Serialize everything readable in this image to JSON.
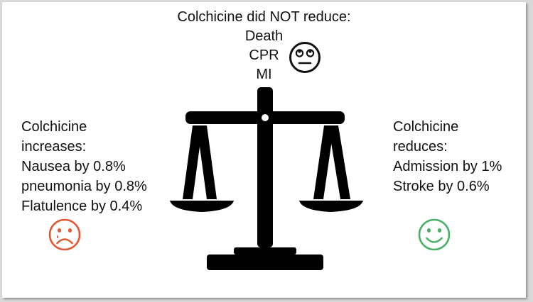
{
  "header": {
    "lines": [
      "Colchicine did NOT reduce:",
      "Death",
      "CPR",
      "MI"
    ]
  },
  "left_panel": {
    "lines": [
      "Colchicine",
      "increases:",
      "Nausea by 0.8%",
      "pneumonia by 0.8%",
      "Flatulence by 0.4%"
    ]
  },
  "right_panel": {
    "lines": [
      "Colchicine",
      "reduces:",
      "Admission by 1%",
      "Stroke by 0.6%"
    ]
  },
  "icons": {
    "neutral": "eye-roll-face-icon",
    "sad": "sad-face-icon",
    "happy": "smiley-face-icon",
    "scale": "balance-scale-icon"
  },
  "colors": {
    "text": "#111111",
    "sad": "#e05a36",
    "happy": "#4caf6a",
    "scale": "#000000"
  }
}
